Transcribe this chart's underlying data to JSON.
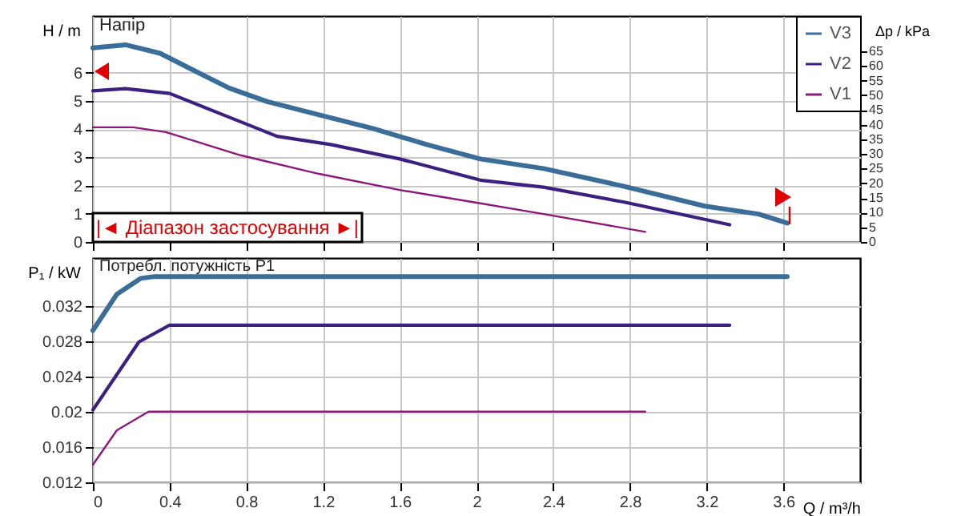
{
  "chart_data": [
    {
      "type": "line",
      "ylabel": "H / m",
      "y2label": "Δp / kPa",
      "annotations": [
        "Напір",
        "|◄ Діапазон застосування ►|"
      ],
      "xlim": [
        0,
        4
      ],
      "xticks": [
        0,
        0.4,
        0.8,
        1.2,
        1.6,
        2,
        2.4,
        2.8,
        3.2,
        3.6
      ],
      "ylim": [
        0,
        8
      ],
      "yticks": [
        0,
        1,
        2,
        3,
        4,
        5,
        6
      ],
      "y2lim": [
        0,
        77
      ],
      "y2ticks": [
        0,
        5,
        10,
        15,
        20,
        25,
        30,
        35,
        40,
        45,
        50,
        55,
        60,
        65
      ],
      "grid": true,
      "legend": "top right",
      "tick_labels": "y",
      "series": [
        {
          "name": "V3",
          "color": "#3a6e98",
          "x": [
            0,
            0.17,
            0.35,
            0.49,
            0.71,
            0.91,
            1.18,
            1.46,
            1.74,
            2.02,
            2.35,
            2.77,
            3.19,
            3.47,
            3.62
          ],
          "values": [
            6.87,
            6.98,
            6.68,
            6.2,
            5.45,
            4.97,
            4.5,
            4.02,
            3.45,
            2.94,
            2.6,
            1.97,
            1.27,
            0.99,
            0.67
          ]
        },
        {
          "name": "V2",
          "color": "#3c2080",
          "x": [
            0,
            0.17,
            0.4,
            0.68,
            0.96,
            1.24,
            1.6,
            2.02,
            2.35,
            2.77,
            3.32
          ],
          "values": [
            5.35,
            5.43,
            5.26,
            4.5,
            3.74,
            3.45,
            2.94,
            2.19,
            1.94,
            1.41,
            0.61
          ]
        },
        {
          "name": "V1",
          "color": "#8b1a7a",
          "x": [
            0,
            0.21,
            0.38,
            0.77,
            1.18,
            1.6,
            2.02,
            2.35,
            2.88
          ],
          "values": [
            4.06,
            4.06,
            3.89,
            3.07,
            2.41,
            1.84,
            1.37,
            0.99,
            0.36
          ]
        }
      ]
    },
    {
      "type": "line",
      "xlabel": "Q / m³/h",
      "ylabel": "P₁ / kW",
      "annotations": [
        "Потребл. потужність P1"
      ],
      "xlim": [
        0,
        4
      ],
      "xticks": [
        0,
        0.4,
        0.8,
        1.2,
        1.6,
        2,
        2.4,
        2.8,
        3.2,
        3.6
      ],
      "ylim": [
        0.012,
        0.0374
      ],
      "yticks": [
        0.012,
        0.016,
        0.02,
        0.024,
        0.028,
        0.032
      ],
      "grid": true,
      "series": [
        {
          "color": "#3a6e98",
          "x": [
            0,
            0.125,
            0.25,
            0.32,
            3.62
          ],
          "values": [
            0.0292,
            0.0333,
            0.0351,
            0.0353,
            0.0353
          ]
        },
        {
          "color": "#3c2080",
          "x": [
            0,
            0.24,
            0.4,
            3.32
          ],
          "values": [
            0.0202,
            0.0279,
            0.0298,
            0.0298
          ]
        },
        {
          "color": "#8b1a7a",
          "x": [
            0,
            0.125,
            0.29,
            2.88
          ],
          "values": [
            0.014,
            0.0179,
            0.02,
            0.02
          ]
        }
      ]
    }
  ]
}
